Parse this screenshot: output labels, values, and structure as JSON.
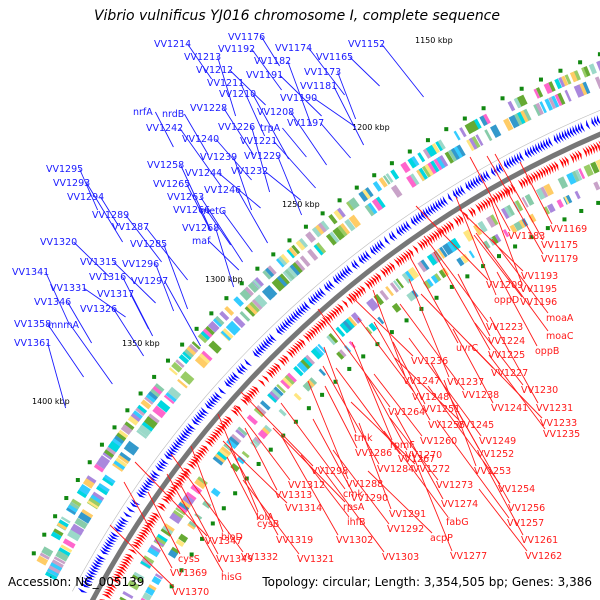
{
  "title": "Vibrio vulnificus YJ016 chromosome I, complete sequence",
  "accession": "Accession: NC_005139",
  "topology": "Topology: circular; Length: 3,354,505 bp; Genes: 3,386",
  "colors": {
    "forward_label": "#1a1aff",
    "reverse_label": "#ff1a1a",
    "backbone": "#777777",
    "tick": "#1f8a1f"
  },
  "kbp_labels": [
    "1150 kbp",
    "1200 kbp",
    "1250 kbp",
    "1300 kbp",
    "1350 kbp",
    "1400 kbp"
  ],
  "forward_genes": [
    {
      "name": "VV1176"
    },
    {
      "name": "VV1214"
    },
    {
      "name": "VV1192"
    },
    {
      "name": "VV1174"
    },
    {
      "name": "VV1152"
    },
    {
      "name": "VV1213"
    },
    {
      "name": "VV1182"
    },
    {
      "name": "VV1165"
    },
    {
      "name": "VV1212"
    },
    {
      "name": "VV1191"
    },
    {
      "name": "VV1173"
    },
    {
      "name": "VV1211"
    },
    {
      "name": "VV1181"
    },
    {
      "name": "VV1210"
    },
    {
      "name": "VV1190"
    },
    {
      "name": "nrfA"
    },
    {
      "name": "nrdB"
    },
    {
      "name": "VV1228"
    },
    {
      "name": "VV1208"
    },
    {
      "name": "VV1242"
    },
    {
      "name": "VV1226"
    },
    {
      "name": "trpA"
    },
    {
      "name": "VV1197"
    },
    {
      "name": "VV1240"
    },
    {
      "name": "VV1221"
    },
    {
      "name": "VV1239"
    },
    {
      "name": "VV1229"
    },
    {
      "name": "VV1258"
    },
    {
      "name": "VV1232"
    },
    {
      "name": "VV1244"
    },
    {
      "name": "VV1295"
    },
    {
      "name": "VV1265"
    },
    {
      "name": "VV1246"
    },
    {
      "name": "VV1293"
    },
    {
      "name": "VV1263"
    },
    {
      "name": "VV1294"
    },
    {
      "name": "VV1266"
    },
    {
      "name": "metG"
    },
    {
      "name": "VV1289"
    },
    {
      "name": "VV1287"
    },
    {
      "name": "VV1268"
    },
    {
      "name": "VV1285"
    },
    {
      "name": "maf"
    },
    {
      "name": "VV1320"
    },
    {
      "name": "VV1315"
    },
    {
      "name": "VV1296"
    },
    {
      "name": "VV1341"
    },
    {
      "name": "VV1316"
    },
    {
      "name": "VV1297"
    },
    {
      "name": "VV1331"
    },
    {
      "name": "VV1317"
    },
    {
      "name": "VV1346"
    },
    {
      "name": "VV1326"
    },
    {
      "name": "VV1358"
    },
    {
      "name": "mnmA"
    },
    {
      "name": "VV1361"
    }
  ],
  "reverse_genes": [
    {
      "name": "VV1169"
    },
    {
      "name": "VV1183"
    },
    {
      "name": "VV1175"
    },
    {
      "name": "VV1179"
    },
    {
      "name": "VV1193"
    },
    {
      "name": "VV1209"
    },
    {
      "name": "VV1195"
    },
    {
      "name": "oppD"
    },
    {
      "name": "VV1196"
    },
    {
      "name": "moaA"
    },
    {
      "name": "VV1223"
    },
    {
      "name": "moaC"
    },
    {
      "name": "VV1224"
    },
    {
      "name": "oppB"
    },
    {
      "name": "uvrC"
    },
    {
      "name": "VV1225"
    },
    {
      "name": "VV1236"
    },
    {
      "name": "VV1227"
    },
    {
      "name": "VV1247"
    },
    {
      "name": "VV1237"
    },
    {
      "name": "VV1230"
    },
    {
      "name": "VV1248"
    },
    {
      "name": "VV1238"
    },
    {
      "name": "VV1264"
    },
    {
      "name": "VV1251"
    },
    {
      "name": "VV1241"
    },
    {
      "name": "VV1231"
    },
    {
      "name": "VV1255"
    },
    {
      "name": "VV1245"
    },
    {
      "name": "VV1233"
    },
    {
      "name": "tmk"
    },
    {
      "name": "rpmF"
    },
    {
      "name": "VV1260"
    },
    {
      "name": "VV1235"
    },
    {
      "name": "VV1267"
    },
    {
      "name": "VV1249"
    },
    {
      "name": "VV1286"
    },
    {
      "name": "VV1270"
    },
    {
      "name": "VV1252"
    },
    {
      "name": "VV1284"
    },
    {
      "name": "VV1272"
    },
    {
      "name": "VV1298"
    },
    {
      "name": "VV1253"
    },
    {
      "name": "VV1288"
    },
    {
      "name": "VV1273"
    },
    {
      "name": "VV1312"
    },
    {
      "name": "cmk"
    },
    {
      "name": "VV1254"
    },
    {
      "name": "VV1313"
    },
    {
      "name": "VV1290"
    },
    {
      "name": "VV1274"
    },
    {
      "name": "VV1256"
    },
    {
      "name": "VV1314"
    },
    {
      "name": "rpsA"
    },
    {
      "name": "VV1291"
    },
    {
      "name": "lolA"
    },
    {
      "name": "ihfB"
    },
    {
      "name": "VV1292"
    },
    {
      "name": "fabG"
    },
    {
      "name": "VV1257"
    },
    {
      "name": "cysB"
    },
    {
      "name": "VV1261"
    },
    {
      "name": "VV1319"
    },
    {
      "name": "VV1302"
    },
    {
      "name": "acpP"
    },
    {
      "name": "VV1347"
    },
    {
      "name": "bioD"
    },
    {
      "name": "VV1277"
    },
    {
      "name": "VV1262"
    },
    {
      "name": "VV1321"
    },
    {
      "name": "VV1303"
    },
    {
      "name": "VV1332"
    },
    {
      "name": "cysS"
    },
    {
      "name": "VV1349"
    },
    {
      "name": "VV1369"
    },
    {
      "name": "hisG"
    },
    {
      "name": "VV1370"
    }
  ]
}
